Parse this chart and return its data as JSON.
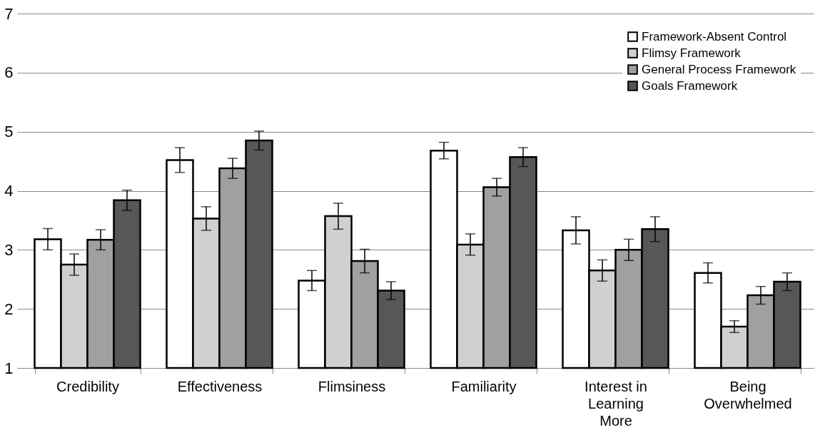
{
  "chart_data": {
    "type": "bar",
    "categories": [
      "Credibility",
      "Effectiveness",
      "Flimsiness",
      "Familiarity",
      "Interest in Learning More",
      "Being Overwhelmed"
    ],
    "series": [
      {
        "name": "Framework-Absent Control",
        "color": "#ffffff",
        "values": [
          3.18,
          4.52,
          2.48,
          4.68,
          3.33,
          2.61
        ],
        "errors": [
          0.18,
          0.21,
          0.17,
          0.14,
          0.23,
          0.17
        ]
      },
      {
        "name": "Flimsy Framework",
        "color": "#d0d0d0",
        "values": [
          2.75,
          3.53,
          3.57,
          3.09,
          2.65,
          1.7
        ],
        "errors": [
          0.18,
          0.2,
          0.22,
          0.18,
          0.18,
          0.1
        ]
      },
      {
        "name": "General Process Framework",
        "color": "#a0a0a0",
        "values": [
          3.17,
          4.38,
          2.81,
          4.06,
          3.0,
          2.23
        ],
        "errors": [
          0.17,
          0.17,
          0.2,
          0.15,
          0.18,
          0.15
        ]
      },
      {
        "name": "Goals Framework",
        "color": "#575757",
        "values": [
          3.84,
          4.85,
          2.31,
          4.57,
          3.35,
          2.46
        ],
        "errors": [
          0.17,
          0.16,
          0.15,
          0.16,
          0.21,
          0.15
        ]
      }
    ],
    "ylim": [
      1,
      7
    ],
    "yticks": [
      1,
      2,
      3,
      4,
      5,
      6,
      7
    ],
    "grid": "y",
    "legend": "top right"
  }
}
